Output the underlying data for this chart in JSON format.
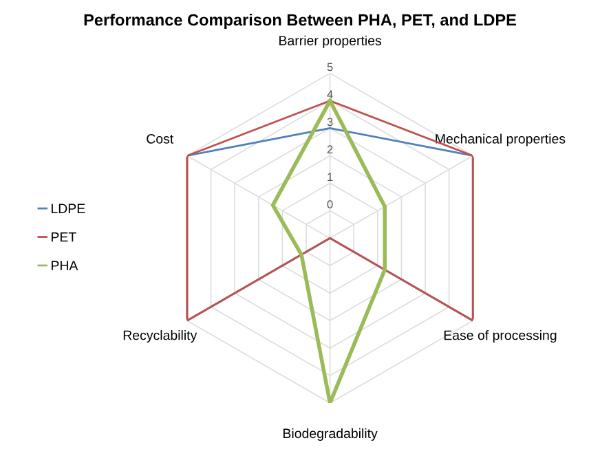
{
  "chart_data": {
    "type": "radar",
    "title": "Performance Comparison Between PHA, PET, and LDPE",
    "categories": [
      "Barrier properties",
      "Mechanical properties",
      "Ease of processing",
      "Biodegradability",
      "Recyclability",
      "Cost"
    ],
    "series": [
      {
        "name": "LDPE",
        "color": "#4f81bd",
        "values": [
          3,
          5,
          5,
          -1,
          5,
          5
        ]
      },
      {
        "name": "PET",
        "color": "#c0504d",
        "values": [
          4,
          5,
          5,
          -1,
          5,
          5
        ]
      },
      {
        "name": "PHA",
        "color": "#9bbb59",
        "values": [
          4,
          1.3,
          1.3,
          5,
          0.2,
          1.4
        ]
      }
    ],
    "ylim": [
      -1,
      5
    ],
    "yticks": [
      0,
      1,
      2,
      3,
      4,
      5
    ],
    "grid": true,
    "legend": "left"
  }
}
